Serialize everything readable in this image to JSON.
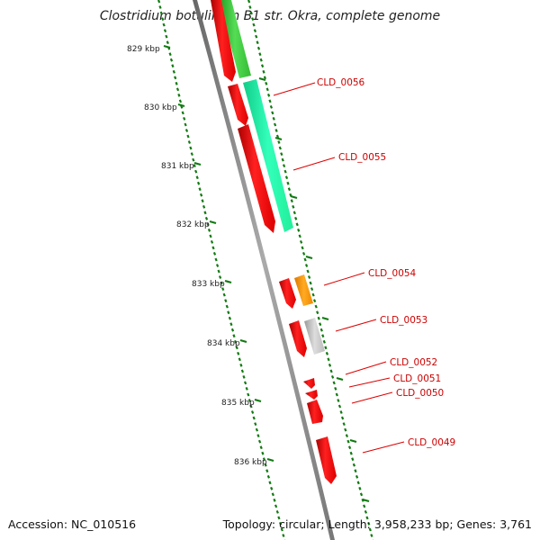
{
  "map": {
    "title": "Clostridium botulinum B1 str. Okra, complete genome",
    "accession": "Accession: NC_010516",
    "stats": "Topology: circular; Length: 3,958,233 bp; Genes: 3,761"
  },
  "colors": {
    "backbone": "#888888",
    "tick": "#117a11",
    "forward_gene": "#ff0000",
    "label": "#cc0000",
    "green_gene": "#33cc33",
    "teal_gene": "#22ffaa",
    "orange_gene": "#ff9900",
    "grey_gene": "#cccccc"
  },
  "axis": {
    "unit": "kbp",
    "labels": [
      "829 kbp",
      "830 kbp",
      "831 kbp",
      "832 kbp",
      "833 kbp",
      "834 kbp",
      "835 kbp",
      "836 kbp"
    ]
  },
  "genes": [
    {
      "label": "CLD_0056"
    },
    {
      "label": "CLD_0055"
    },
    {
      "label": "CLD_0054"
    },
    {
      "label": "CLD_0053"
    },
    {
      "label": "CLD_0052"
    },
    {
      "label": "CLD_0051"
    },
    {
      "label": "CLD_0050"
    },
    {
      "label": "CLD_0049"
    }
  ]
}
